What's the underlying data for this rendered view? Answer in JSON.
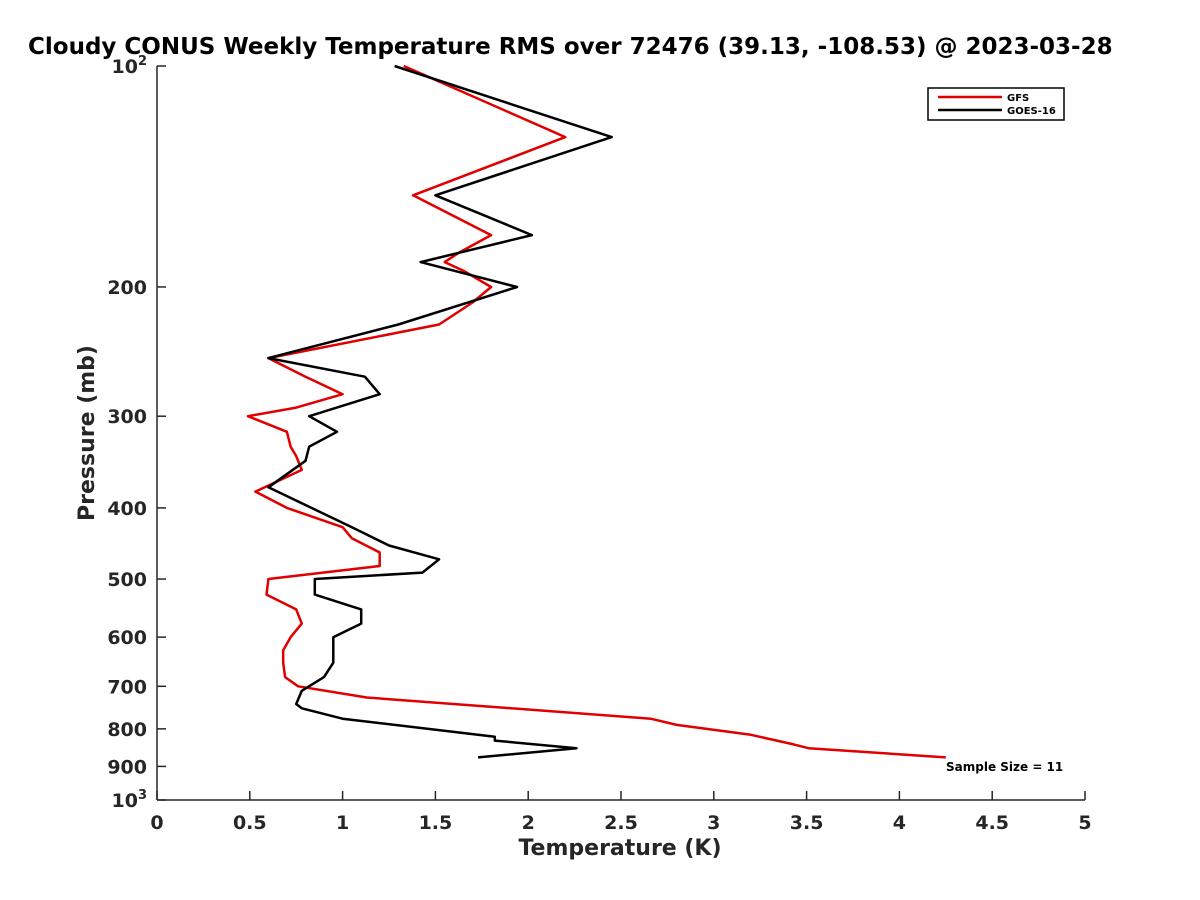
{
  "chart_data": {
    "type": "line",
    "title": "Cloudy CONUS Weekly Temperature RMS over 72476 (39.13, -108.53) @ 2023-03-28",
    "xlabel": "Temperature (K)",
    "ylabel": "Pressure (mb)",
    "xlim": [
      0,
      5
    ],
    "ylim": [
      100,
      1000
    ],
    "y_scale": "log",
    "y_reversed": true,
    "x_ticks": [
      0,
      0.5,
      1,
      1.5,
      2,
      2.5,
      3,
      3.5,
      4,
      4.5,
      5
    ],
    "x_tick_labels": [
      "0",
      "0.5",
      "1",
      "1.5",
      "2",
      "2.5",
      "3",
      "3.5",
      "4",
      "4.5",
      "5"
    ],
    "y_ticks": [
      200,
      300,
      400,
      500,
      600,
      700,
      800,
      900
    ],
    "y_tick_labels": [
      "200",
      "300",
      "400",
      "500",
      "600",
      "700",
      "800",
      "900"
    ],
    "y_end_labels": {
      "top": {
        "base": "10",
        "exp": "2"
      },
      "bottom": {
        "base": "10",
        "exp": "3"
      }
    },
    "grid": false,
    "legend_position": "top-right",
    "annotation": "Sample Size = 11",
    "series": [
      {
        "name": "GFS",
        "color": "#e00000",
        "points": [
          [
            1.33,
            100
          ],
          [
            2.2,
            125
          ],
          [
            1.38,
            150
          ],
          [
            1.8,
            170
          ],
          [
            1.62,
            180
          ],
          [
            1.55,
            185
          ],
          [
            1.65,
            190
          ],
          [
            1.8,
            200
          ],
          [
            1.7,
            210
          ],
          [
            1.52,
            225
          ],
          [
            0.6,
            250
          ],
          [
            0.8,
            265
          ],
          [
            1.0,
            280
          ],
          [
            0.75,
            292
          ],
          [
            0.49,
            300
          ],
          [
            0.7,
            315
          ],
          [
            0.72,
            330
          ],
          [
            0.75,
            340
          ],
          [
            0.78,
            355
          ],
          [
            0.53,
            380
          ],
          [
            0.7,
            400
          ],
          [
            1.0,
            425
          ],
          [
            1.05,
            440
          ],
          [
            1.2,
            460
          ],
          [
            1.2,
            480
          ],
          [
            0.6,
            500
          ],
          [
            0.59,
            525
          ],
          [
            0.75,
            550
          ],
          [
            0.78,
            575
          ],
          [
            0.72,
            600
          ],
          [
            0.68,
            625
          ],
          [
            0.68,
            650
          ],
          [
            0.69,
            680
          ],
          [
            0.76,
            700
          ],
          [
            1.13,
            725
          ],
          [
            2.66,
            775
          ],
          [
            2.8,
            790
          ],
          [
            3.2,
            815
          ],
          [
            3.43,
            840
          ],
          [
            3.51,
            850
          ],
          [
            4.25,
            875
          ]
        ]
      },
      {
        "name": "GOES-16",
        "color": "#000000",
        "points": [
          [
            1.28,
            100
          ],
          [
            2.45,
            125
          ],
          [
            1.5,
            150
          ],
          [
            2.02,
            170
          ],
          [
            1.42,
            185
          ],
          [
            1.94,
            200
          ],
          [
            1.3,
            225
          ],
          [
            0.6,
            250
          ],
          [
            1.12,
            265
          ],
          [
            1.2,
            280
          ],
          [
            0.82,
            300
          ],
          [
            0.97,
            315
          ],
          [
            0.82,
            330
          ],
          [
            0.8,
            345
          ],
          [
            0.6,
            375
          ],
          [
            1.05,
            425
          ],
          [
            1.25,
            450
          ],
          [
            1.52,
            470
          ],
          [
            1.43,
            490
          ],
          [
            0.85,
            500
          ],
          [
            0.85,
            525
          ],
          [
            1.1,
            550
          ],
          [
            1.1,
            575
          ],
          [
            0.95,
            600
          ],
          [
            0.95,
            625
          ],
          [
            0.95,
            650
          ],
          [
            0.9,
            680
          ],
          [
            0.78,
            710
          ],
          [
            0.75,
            740
          ],
          [
            0.78,
            750
          ],
          [
            1.0,
            775
          ],
          [
            1.82,
            820
          ],
          [
            1.82,
            830
          ],
          [
            2.26,
            850
          ],
          [
            1.73,
            875
          ]
        ]
      }
    ]
  }
}
